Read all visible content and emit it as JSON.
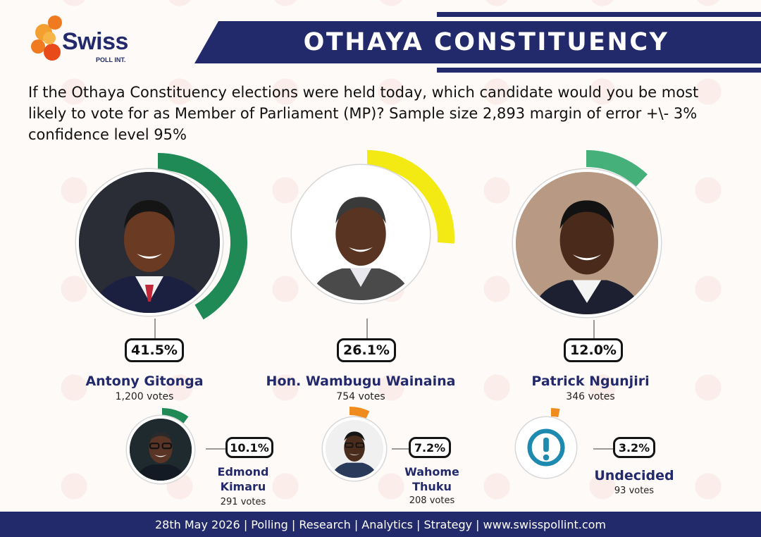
{
  "brand": {
    "logo_name": "Swiss",
    "logo_sub": "POLL INT.",
    "colors": {
      "navy": "#232a6b",
      "green": "#1f8a55",
      "light_green": "#45b07a",
      "yellow": "#f2ea12",
      "orange": "#f08c1e"
    }
  },
  "header": {
    "title": "OTHAYA CONSTITUENCY"
  },
  "question": "If the Othaya Constituency elections were held today, which candidate would you be most likely to vote for as Member of Parliament (MP)? Sample size 2,893 margin of error +\\- 3% confidence level 95%",
  "chart_data": {
    "type": "bar",
    "title": "OTHAYA CONSTITUENCY",
    "categories": [
      "Antony Gitonga",
      "Hon. Wambugu Wainaina",
      "Patrick Ngunjiri",
      "Edmond Kimaru",
      "Wahome Thuku",
      "Undecided"
    ],
    "series": [
      {
        "values": [
          41.5,
          26.1,
          12.0,
          10.1,
          7.2,
          3.2
        ]
      }
    ],
    "labels": [
      "41.5%",
      "26.1%",
      "12.0%",
      "10.1%",
      "7.2%",
      "3.2%"
    ],
    "votes": [
      "1,200 votes",
      "754 votes",
      "346 votes",
      "291 votes",
      "208 votes",
      "93 votes"
    ],
    "ring_colors": [
      "#1f8a55",
      "#f2ea12",
      "#45b07a",
      "#1f8a55",
      "#f08c1e",
      "#f08c1e"
    ]
  },
  "footer": {
    "text": "28th May 2026 | Polling | Research | Analytics | Strategy | www.swisspollint.com"
  }
}
